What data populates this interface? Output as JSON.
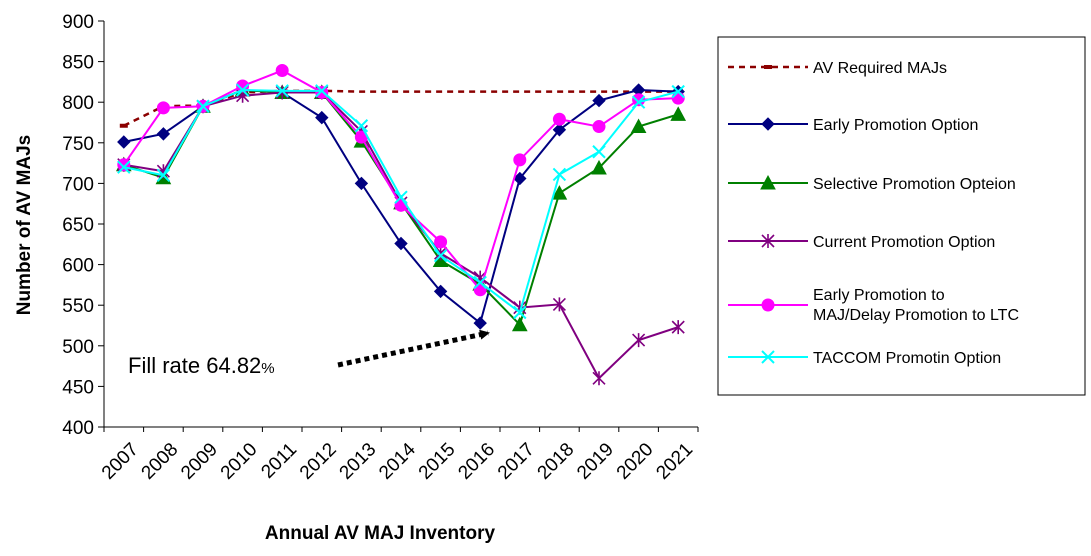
{
  "chart_data": {
    "type": "line",
    "xlabel": "Annual AV MAJ Inventory",
    "ylabel": "Number of AV MAJs",
    "ylim": [
      400,
      900
    ],
    "yticks": [
      400,
      450,
      500,
      550,
      600,
      650,
      700,
      750,
      800,
      850,
      900
    ],
    "categories": [
      "2007",
      "2008",
      "2009",
      "2010",
      "2011",
      "2012",
      "2013",
      "2014",
      "2015",
      "2016",
      "2017",
      "2018",
      "2019",
      "2020",
      "2021"
    ],
    "legend_position": "right",
    "grid": false,
    "series": [
      {
        "name": "AV Required MAJs",
        "color": "#8B0000",
        "marker": "dash",
        "values": [
          771,
          795,
          796,
          812,
          814,
          814,
          813,
          813,
          813,
          813,
          813,
          813,
          813,
          813,
          813
        ]
      },
      {
        "name": "Early Promotion Option",
        "color": "#000080",
        "marker": "diamond",
        "values": [
          751,
          761,
          795,
          815,
          812,
          781,
          700,
          626,
          567,
          528,
          706,
          766,
          802,
          815,
          813
        ]
      },
      {
        "name": "Selective Promotion Opteion",
        "color": "#008000",
        "marker": "triangle",
        "values": [
          723,
          707,
          795,
          815,
          812,
          812,
          752,
          676,
          605,
          576,
          526,
          688,
          719,
          770,
          785
        ]
      },
      {
        "name": "Current Promotion Option",
        "color": "#800080",
        "marker": "asterisk",
        "values": [
          723,
          715,
          795,
          808,
          812,
          812,
          764,
          676,
          614,
          584,
          547,
          551,
          460,
          507,
          523
        ]
      },
      {
        "name": "Early Promotion to MAJ/Delay Promotion to LTC",
        "label_lines": [
          "Early Promotion to",
          "MAJ/Delay Promotion to LTC"
        ],
        "color": "#FF00FF",
        "marker": "circle",
        "values": [
          723,
          793,
          795,
          820,
          839,
          812,
          757,
          673,
          628,
          569,
          729,
          779,
          770,
          803,
          805
        ]
      },
      {
        "name": "TACCOM Promotin Option",
        "color": "#00FFFF",
        "marker": "x",
        "values": [
          720,
          710,
          795,
          815,
          814,
          814,
          771,
          683,
          611,
          578,
          541,
          711,
          739,
          800,
          813
        ]
      }
    ],
    "annotation": {
      "text_main": "Fill rate 64.82",
      "text_pct": "%"
    }
  }
}
